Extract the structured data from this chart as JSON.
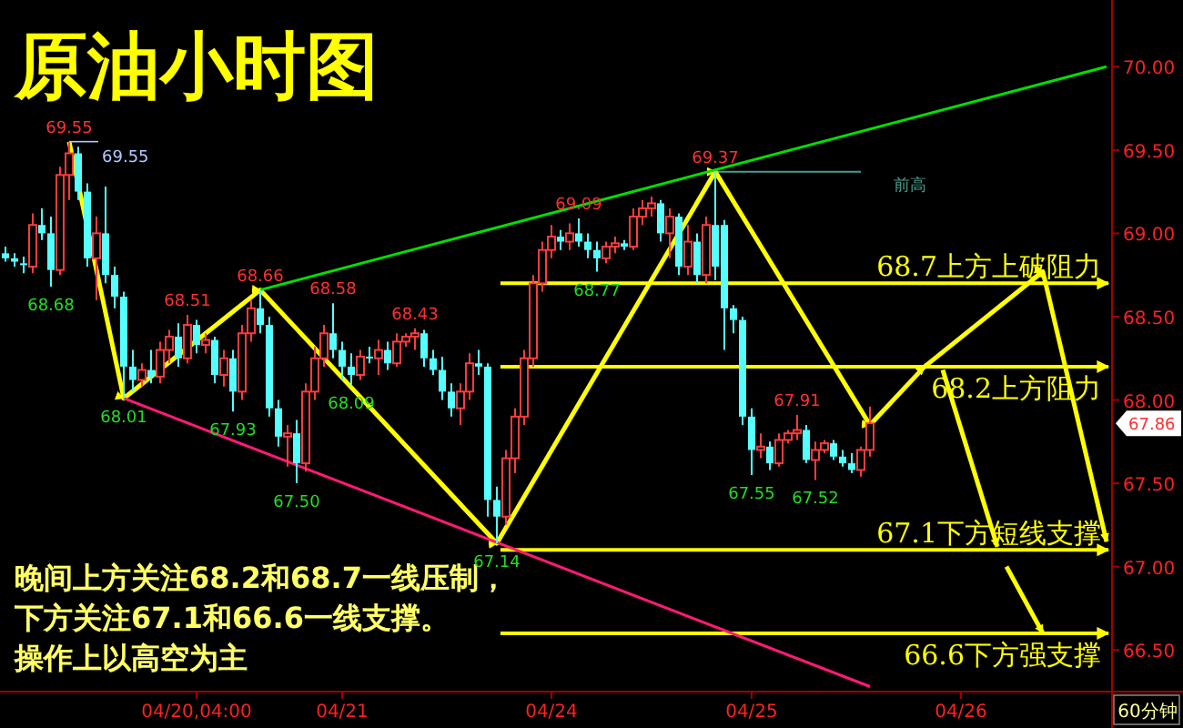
{
  "chart_data": {
    "type": "candlestick",
    "title": "原油小时图",
    "categories": [
      null,
      null,
      null,
      null,
      null,
      null,
      null,
      null,
      null,
      null,
      null,
      null,
      null,
      null,
      null,
      null,
      null,
      null,
      null,
      null,
      null,
      "04/20,04:00",
      null,
      null,
      null,
      null,
      null,
      null,
      null,
      null,
      null,
      null,
      null,
      null,
      null,
      null,
      null,
      "04/21",
      null,
      null,
      null,
      null,
      null,
      null,
      null,
      null,
      null,
      null,
      null,
      null,
      null,
      null,
      null,
      null,
      null,
      null,
      null,
      null,
      null,
      null,
      "04/24",
      null,
      null,
      null,
      null,
      null,
      null,
      null,
      null,
      null,
      null,
      null,
      null,
      null,
      null,
      null,
      null,
      null,
      null,
      null,
      null,
      null,
      "04/25",
      null,
      null,
      null,
      null,
      null,
      null,
      null,
      null,
      null,
      null,
      null,
      null,
      null,
      null,
      null,
      null,
      null,
      null,
      null,
      null,
      null,
      null,
      "04/26",
      null,
      null,
      null,
      null,
      null,
      null,
      null,
      null,
      null,
      null,
      null,
      null,
      null,
      null,
      null,
      null
    ],
    "ohlc": [
      [
        68.88,
        68.92,
        68.83,
        68.85
      ],
      [
        68.85,
        68.88,
        68.8,
        68.83
      ],
      [
        68.82,
        68.86,
        68.76,
        68.81
      ],
      [
        68.8,
        69.12,
        68.76,
        69.05
      ],
      [
        69.05,
        69.15,
        68.96,
        69.0
      ],
      [
        69.0,
        69.1,
        68.68,
        68.78
      ],
      [
        68.78,
        69.4,
        68.75,
        69.35
      ],
      [
        69.35,
        69.55,
        69.2,
        69.48
      ],
      [
        69.48,
        69.52,
        69.2,
        69.25
      ],
      [
        69.25,
        69.3,
        68.8,
        68.85
      ],
      [
        68.85,
        69.1,
        68.6,
        69.0
      ],
      [
        69.0,
        69.28,
        68.7,
        68.75
      ],
      [
        68.75,
        68.8,
        68.55,
        68.62
      ],
      [
        68.62,
        68.65,
        68.01,
        68.2
      ],
      [
        68.2,
        68.3,
        68.05,
        68.12
      ],
      [
        68.12,
        68.22,
        68.08,
        68.18
      ],
      [
        68.18,
        68.3,
        68.1,
        68.14
      ],
      [
        68.14,
        68.35,
        68.1,
        68.3
      ],
      [
        68.3,
        68.42,
        68.22,
        68.38
      ],
      [
        68.38,
        68.46,
        68.2,
        68.25
      ],
      [
        68.25,
        68.51,
        68.22,
        68.45
      ],
      [
        68.45,
        68.48,
        68.28,
        68.33
      ],
      [
        68.33,
        68.4,
        68.28,
        68.36
      ],
      [
        68.36,
        68.38,
        68.1,
        68.15
      ],
      [
        68.15,
        68.3,
        68.08,
        68.25
      ],
      [
        68.25,
        68.3,
        67.93,
        68.05
      ],
      [
        68.05,
        68.45,
        68.0,
        68.4
      ],
      [
        68.4,
        68.6,
        68.35,
        68.55
      ],
      [
        68.55,
        68.66,
        68.4,
        68.45
      ],
      [
        68.45,
        68.5,
        67.9,
        67.95
      ],
      [
        67.95,
        68.0,
        67.72,
        67.78
      ],
      [
        67.78,
        67.85,
        67.6,
        67.8
      ],
      [
        67.8,
        67.88,
        67.5,
        67.62
      ],
      [
        67.62,
        68.1,
        67.57,
        68.05
      ],
      [
        68.05,
        68.32,
        68.0,
        68.25
      ],
      [
        68.25,
        68.45,
        68.2,
        68.4
      ],
      [
        68.4,
        68.58,
        68.25,
        68.3
      ],
      [
        68.3,
        68.35,
        68.12,
        68.2
      ],
      [
        68.2,
        68.28,
        68.09,
        68.15
      ],
      [
        68.15,
        68.3,
        68.12,
        68.26
      ],
      [
        68.26,
        68.32,
        68.22,
        68.25
      ],
      [
        68.25,
        68.36,
        68.15,
        68.3
      ],
      [
        68.3,
        68.35,
        68.18,
        68.22
      ],
      [
        68.22,
        68.4,
        68.2,
        68.35
      ],
      [
        68.35,
        68.4,
        68.32,
        68.38
      ],
      [
        68.38,
        68.43,
        68.3,
        68.4
      ],
      [
        68.4,
        68.42,
        68.2,
        68.25
      ],
      [
        68.25,
        68.3,
        68.15,
        68.18
      ],
      [
        68.18,
        68.26,
        68.0,
        68.05
      ],
      [
        68.05,
        68.1,
        67.9,
        67.95
      ],
      [
        67.95,
        68.1,
        67.85,
        68.05
      ],
      [
        68.05,
        68.28,
        68.0,
        68.22
      ],
      [
        68.22,
        68.3,
        68.15,
        68.2
      ],
      [
        68.2,
        68.22,
        67.3,
        67.4
      ],
      [
        67.4,
        67.48,
        67.14,
        67.3
      ],
      [
        67.3,
        67.7,
        67.25,
        67.65
      ],
      [
        67.65,
        67.95,
        67.56,
        67.9
      ],
      [
        67.9,
        68.3,
        67.85,
        68.25
      ],
      [
        68.25,
        68.75,
        68.2,
        68.7
      ],
      [
        68.7,
        68.95,
        68.65,
        68.9
      ],
      [
        68.9,
        69.05,
        68.85,
        68.98
      ],
      [
        68.98,
        69.02,
        68.9,
        68.95
      ],
      [
        68.95,
        69.06,
        68.9,
        69.0
      ],
      [
        69.0,
        69.09,
        68.92,
        68.95
      ],
      [
        68.95,
        69.0,
        68.85,
        68.9
      ],
      [
        68.9,
        68.95,
        68.77,
        68.85
      ],
      [
        68.85,
        68.95,
        68.82,
        68.92
      ],
      [
        68.92,
        68.98,
        68.88,
        68.94
      ],
      [
        68.94,
        68.96,
        68.9,
        68.92
      ],
      [
        68.92,
        69.15,
        68.9,
        69.1
      ],
      [
        69.1,
        69.2,
        69.05,
        69.15
      ],
      [
        69.15,
        69.22,
        69.1,
        69.18
      ],
      [
        69.18,
        69.2,
        68.95,
        69.0
      ],
      [
        69.0,
        69.15,
        68.85,
        69.1
      ],
      [
        69.1,
        69.12,
        68.75,
        68.8
      ],
      [
        68.8,
        69.05,
        68.75,
        68.95
      ],
      [
        68.95,
        69.0,
        68.7,
        68.75
      ],
      [
        68.75,
        69.1,
        68.7,
        69.05
      ],
      [
        69.05,
        69.37,
        68.72,
        68.8
      ],
      [
        69.05,
        69.08,
        68.3,
        68.55
      ],
      [
        68.55,
        68.57,
        68.4,
        68.48
      ],
      [
        68.48,
        68.5,
        67.85,
        67.9
      ],
      [
        67.9,
        67.95,
        67.55,
        67.7
      ],
      [
        67.7,
        67.8,
        67.65,
        67.72
      ],
      [
        67.72,
        67.75,
        67.58,
        67.62
      ],
      [
        67.62,
        67.8,
        67.6,
        67.76
      ],
      [
        67.76,
        67.82,
        67.74,
        67.8
      ],
      [
        67.8,
        67.91,
        67.76,
        67.82
      ],
      [
        67.82,
        67.85,
        67.62,
        67.64
      ],
      [
        67.64,
        67.75,
        67.52,
        67.7
      ],
      [
        67.7,
        67.76,
        67.68,
        67.74
      ],
      [
        67.74,
        67.76,
        67.64,
        67.66
      ],
      [
        67.66,
        67.7,
        67.6,
        67.62
      ],
      [
        67.62,
        67.68,
        67.56,
        67.58
      ],
      [
        67.58,
        67.72,
        67.54,
        67.7
      ],
      [
        67.7,
        67.96,
        67.66,
        67.86
      ],
      null,
      null,
      null,
      null,
      null,
      null,
      null,
      null,
      null,
      null,
      null,
      null,
      null,
      null,
      null,
      null,
      null,
      null,
      null,
      null,
      null,
      null,
      null,
      null,
      null,
      null
    ],
    "series": [
      {
        "type": "line",
        "color": "#ffff00",
        "values": [
          null,
          null,
          null,
          null,
          null,
          null,
          null,
          69.55,
          null,
          null,
          null,
          null,
          null,
          68.01,
          null,
          null,
          null,
          null,
          null,
          null,
          null,
          null,
          null,
          null,
          null,
          null,
          null,
          null,
          68.66,
          null,
          null,
          null,
          null,
          null,
          null,
          null,
          null,
          null,
          null,
          null,
          null,
          null,
          null,
          null,
          null,
          null,
          null,
          null,
          null,
          null,
          null,
          null,
          null,
          null,
          67.14,
          null,
          null,
          null,
          null,
          null,
          null,
          null,
          null,
          null,
          null,
          null,
          null,
          null,
          null,
          null,
          null,
          null,
          null,
          null,
          null,
          null,
          null,
          null,
          69.37,
          null,
          null,
          null,
          null,
          null,
          null,
          null,
          null,
          null,
          null,
          null,
          null,
          null,
          null,
          null,
          null,
          67.85,
          null,
          null,
          null,
          null,
          null,
          68.2,
          null,
          null,
          null,
          null,
          null,
          null,
          null,
          null,
          null,
          null,
          null,
          null,
          68.77,
          null,
          null,
          null,
          null,
          null,
          null,
          67.15
        ]
      },
      {
        "type": "line",
        "color": "#ffff00",
        "values": [
          null,
          null,
          null,
          null,
          null,
          null,
          null,
          null,
          null,
          null,
          null,
          null,
          null,
          null,
          null,
          null,
          null,
          null,
          null,
          null,
          null,
          null,
          null,
          null,
          null,
          null,
          null,
          null,
          null,
          null,
          null,
          null,
          null,
          null,
          null,
          null,
          null,
          null,
          null,
          null,
          null,
          null,
          null,
          null,
          null,
          null,
          null,
          null,
          null,
          null,
          null,
          null,
          null,
          null,
          null,
          null,
          null,
          null,
          null,
          null,
          null,
          null,
          null,
          null,
          null,
          null,
          null,
          null,
          null,
          null,
          null,
          null,
          null,
          null,
          null,
          null,
          null,
          null,
          null,
          null,
          null,
          null,
          null,
          null,
          null,
          null,
          null,
          null,
          null,
          null,
          null,
          null,
          null,
          null,
          null,
          null,
          null,
          null,
          null,
          null,
          null,
          null,
          null,
          68.18,
          null,
          null,
          null,
          null,
          null,
          67.12,
          null,
          null,
          null,
          null,
          null,
          null,
          null,
          null,
          null,
          null,
          null,
          null
        ]
      },
      {
        "type": "line",
        "color": "#ffff00",
        "values": [
          null,
          null,
          null,
          null,
          null,
          null,
          null,
          null,
          null,
          null,
          null,
          null,
          null,
          null,
          null,
          null,
          null,
          null,
          null,
          null,
          null,
          null,
          null,
          null,
          null,
          null,
          null,
          null,
          null,
          null,
          null,
          null,
          null,
          null,
          null,
          null,
          null,
          null,
          null,
          null,
          null,
          null,
          null,
          null,
          null,
          null,
          null,
          null,
          null,
          null,
          null,
          null,
          null,
          null,
          null,
          null,
          null,
          null,
          null,
          null,
          null,
          null,
          null,
          null,
          null,
          null,
          null,
          null,
          null,
          null,
          null,
          null,
          null,
          null,
          null,
          null,
          null,
          null,
          null,
          null,
          null,
          null,
          null,
          null,
          null,
          null,
          null,
          null,
          null,
          null,
          null,
          null,
          null,
          null,
          null,
          null,
          null,
          null,
          null,
          null,
          null,
          null,
          null,
          null,
          null,
          null,
          null,
          null,
          null,
          null,
          67.0,
          null,
          null,
          null,
          66.6,
          null,
          null,
          null,
          null,
          null,
          null,
          null
        ]
      },
      {
        "type": "line",
        "color": "#00e000",
        "marker": "none",
        "values": [
          null,
          null,
          null,
          null,
          null,
          null,
          null,
          null,
          null,
          null,
          null,
          null,
          null,
          null,
          null,
          null,
          null,
          null,
          null,
          null,
          null,
          null,
          null,
          null,
          null,
          null,
          null,
          null,
          68.66,
          null,
          null,
          null,
          null,
          null,
          null,
          null,
          null,
          null,
          null,
          null,
          null,
          null,
          null,
          null,
          null,
          null,
          null,
          null,
          null,
          null,
          null,
          null,
          null,
          null,
          null,
          null,
          null,
          null,
          null,
          null,
          null,
          null,
          null,
          null,
          null,
          null,
          null,
          null,
          null,
          null,
          null,
          null,
          null,
          null,
          null,
          null,
          null,
          null,
          null,
          null,
          null,
          null,
          null,
          null,
          null,
          null,
          null,
          null,
          null,
          null,
          null,
          null,
          null,
          null,
          null,
          null,
          null,
          null,
          null,
          null,
          null,
          null,
          null,
          null,
          null,
          null,
          null,
          null,
          null,
          null,
          null,
          null,
          null,
          null,
          null,
          null,
          null,
          null,
          null,
          null,
          null,
          70.0
        ]
      },
      {
        "type": "line",
        "color": "#ff1a75",
        "marker": "none",
        "values": [
          null,
          null,
          null,
          null,
          null,
          null,
          null,
          null,
          null,
          null,
          null,
          null,
          null,
          68.01,
          null,
          null,
          null,
          null,
          null,
          null,
          null,
          null,
          null,
          null,
          null,
          null,
          null,
          null,
          null,
          null,
          null,
          null,
          null,
          null,
          null,
          null,
          null,
          null,
          null,
          null,
          null,
          null,
          null,
          null,
          null,
          null,
          null,
          null,
          null,
          null,
          null,
          null,
          null,
          null,
          null,
          null,
          null,
          null,
          null,
          null,
          null,
          null,
          null,
          null,
          null,
          null,
          null,
          null,
          null,
          null,
          null,
          null,
          null,
          null,
          null,
          null,
          null,
          null,
          null,
          null,
          null,
          null,
          null,
          null,
          null,
          null,
          null,
          null,
          null,
          null,
          null,
          null,
          null,
          null,
          null,
          66.28,
          null,
          null,
          null,
          null,
          null,
          null,
          null,
          null,
          null,
          null,
          null,
          null,
          null,
          null,
          null,
          null,
          null,
          null,
          null,
          null,
          null,
          null,
          null,
          null,
          null,
          null
        ]
      }
    ],
    "ylim": [
      66.25,
      70.4
    ],
    "yticks": [
      {
        "value": 66.5,
        "label": "66.50"
      },
      {
        "value": 67,
        "label": "67.00"
      },
      {
        "value": 67.5,
        "label": "67.50"
      },
      {
        "value": 68,
        "label": "68.00"
      },
      {
        "value": 68.5,
        "label": "68.50"
      },
      {
        "value": 69,
        "label": "69.00"
      },
      {
        "value": 69.5,
        "label": "69.50"
      },
      {
        "value": 70,
        "label": "70.00"
      }
    ],
    "ref_lines": [
      {
        "axis": "y",
        "value": 68.7,
        "label": "68.7上方上破阻力",
        "color": "#ffff00"
      },
      {
        "axis": "y",
        "value": 68.2,
        "label": "68.2上方阻力",
        "color": "#ffff00"
      },
      {
        "axis": "y",
        "value": 67.1,
        "label": "67.1下方短线支撑",
        "color": "#ffff00"
      },
      {
        "axis": "y",
        "value": 66.6,
        "label": "66.6下方强支撑",
        "color": "#ffff00"
      },
      {
        "axis": "y",
        "value": 69.37,
        "label": "前高",
        "color": "#4a9a8a"
      }
    ],
    "annotations": [
      "晚间上方关注68.2和68.7一线压制，",
      "下方关注67.1和66.6一线支撑。",
      "操作上以高空为主",
      "60分钟",
      "69.55",
      "67.86",
      {
        "text": "69.55",
        "y": 69.55
      },
      {
        "text": "68.68",
        "y": 68.68
      },
      {
        "text": "68.01",
        "y": 68.01
      },
      {
        "text": "68.51",
        "y": 68.51
      },
      {
        "text": "67.93",
        "y": 67.93
      },
      {
        "text": "68.66",
        "y": 68.66
      },
      {
        "text": "67.50",
        "y": 67.5
      },
      {
        "text": "68.58",
        "y": 68.58
      },
      {
        "text": "68.09",
        "y": 68.09
      },
      {
        "text": "68.43",
        "y": 68.43
      },
      {
        "text": "67.14",
        "y": 67.14
      },
      {
        "text": "69.09",
        "y": 69.09
      },
      {
        "text": "68.77",
        "y": 68.77
      },
      {
        "text": "69.37",
        "y": 69.37
      },
      {
        "text": "67.55",
        "y": 67.55
      },
      {
        "text": "67.91",
        "y": 67.91
      },
      {
        "text": "67.52",
        "y": 67.52
      }
    ]
  }
}
